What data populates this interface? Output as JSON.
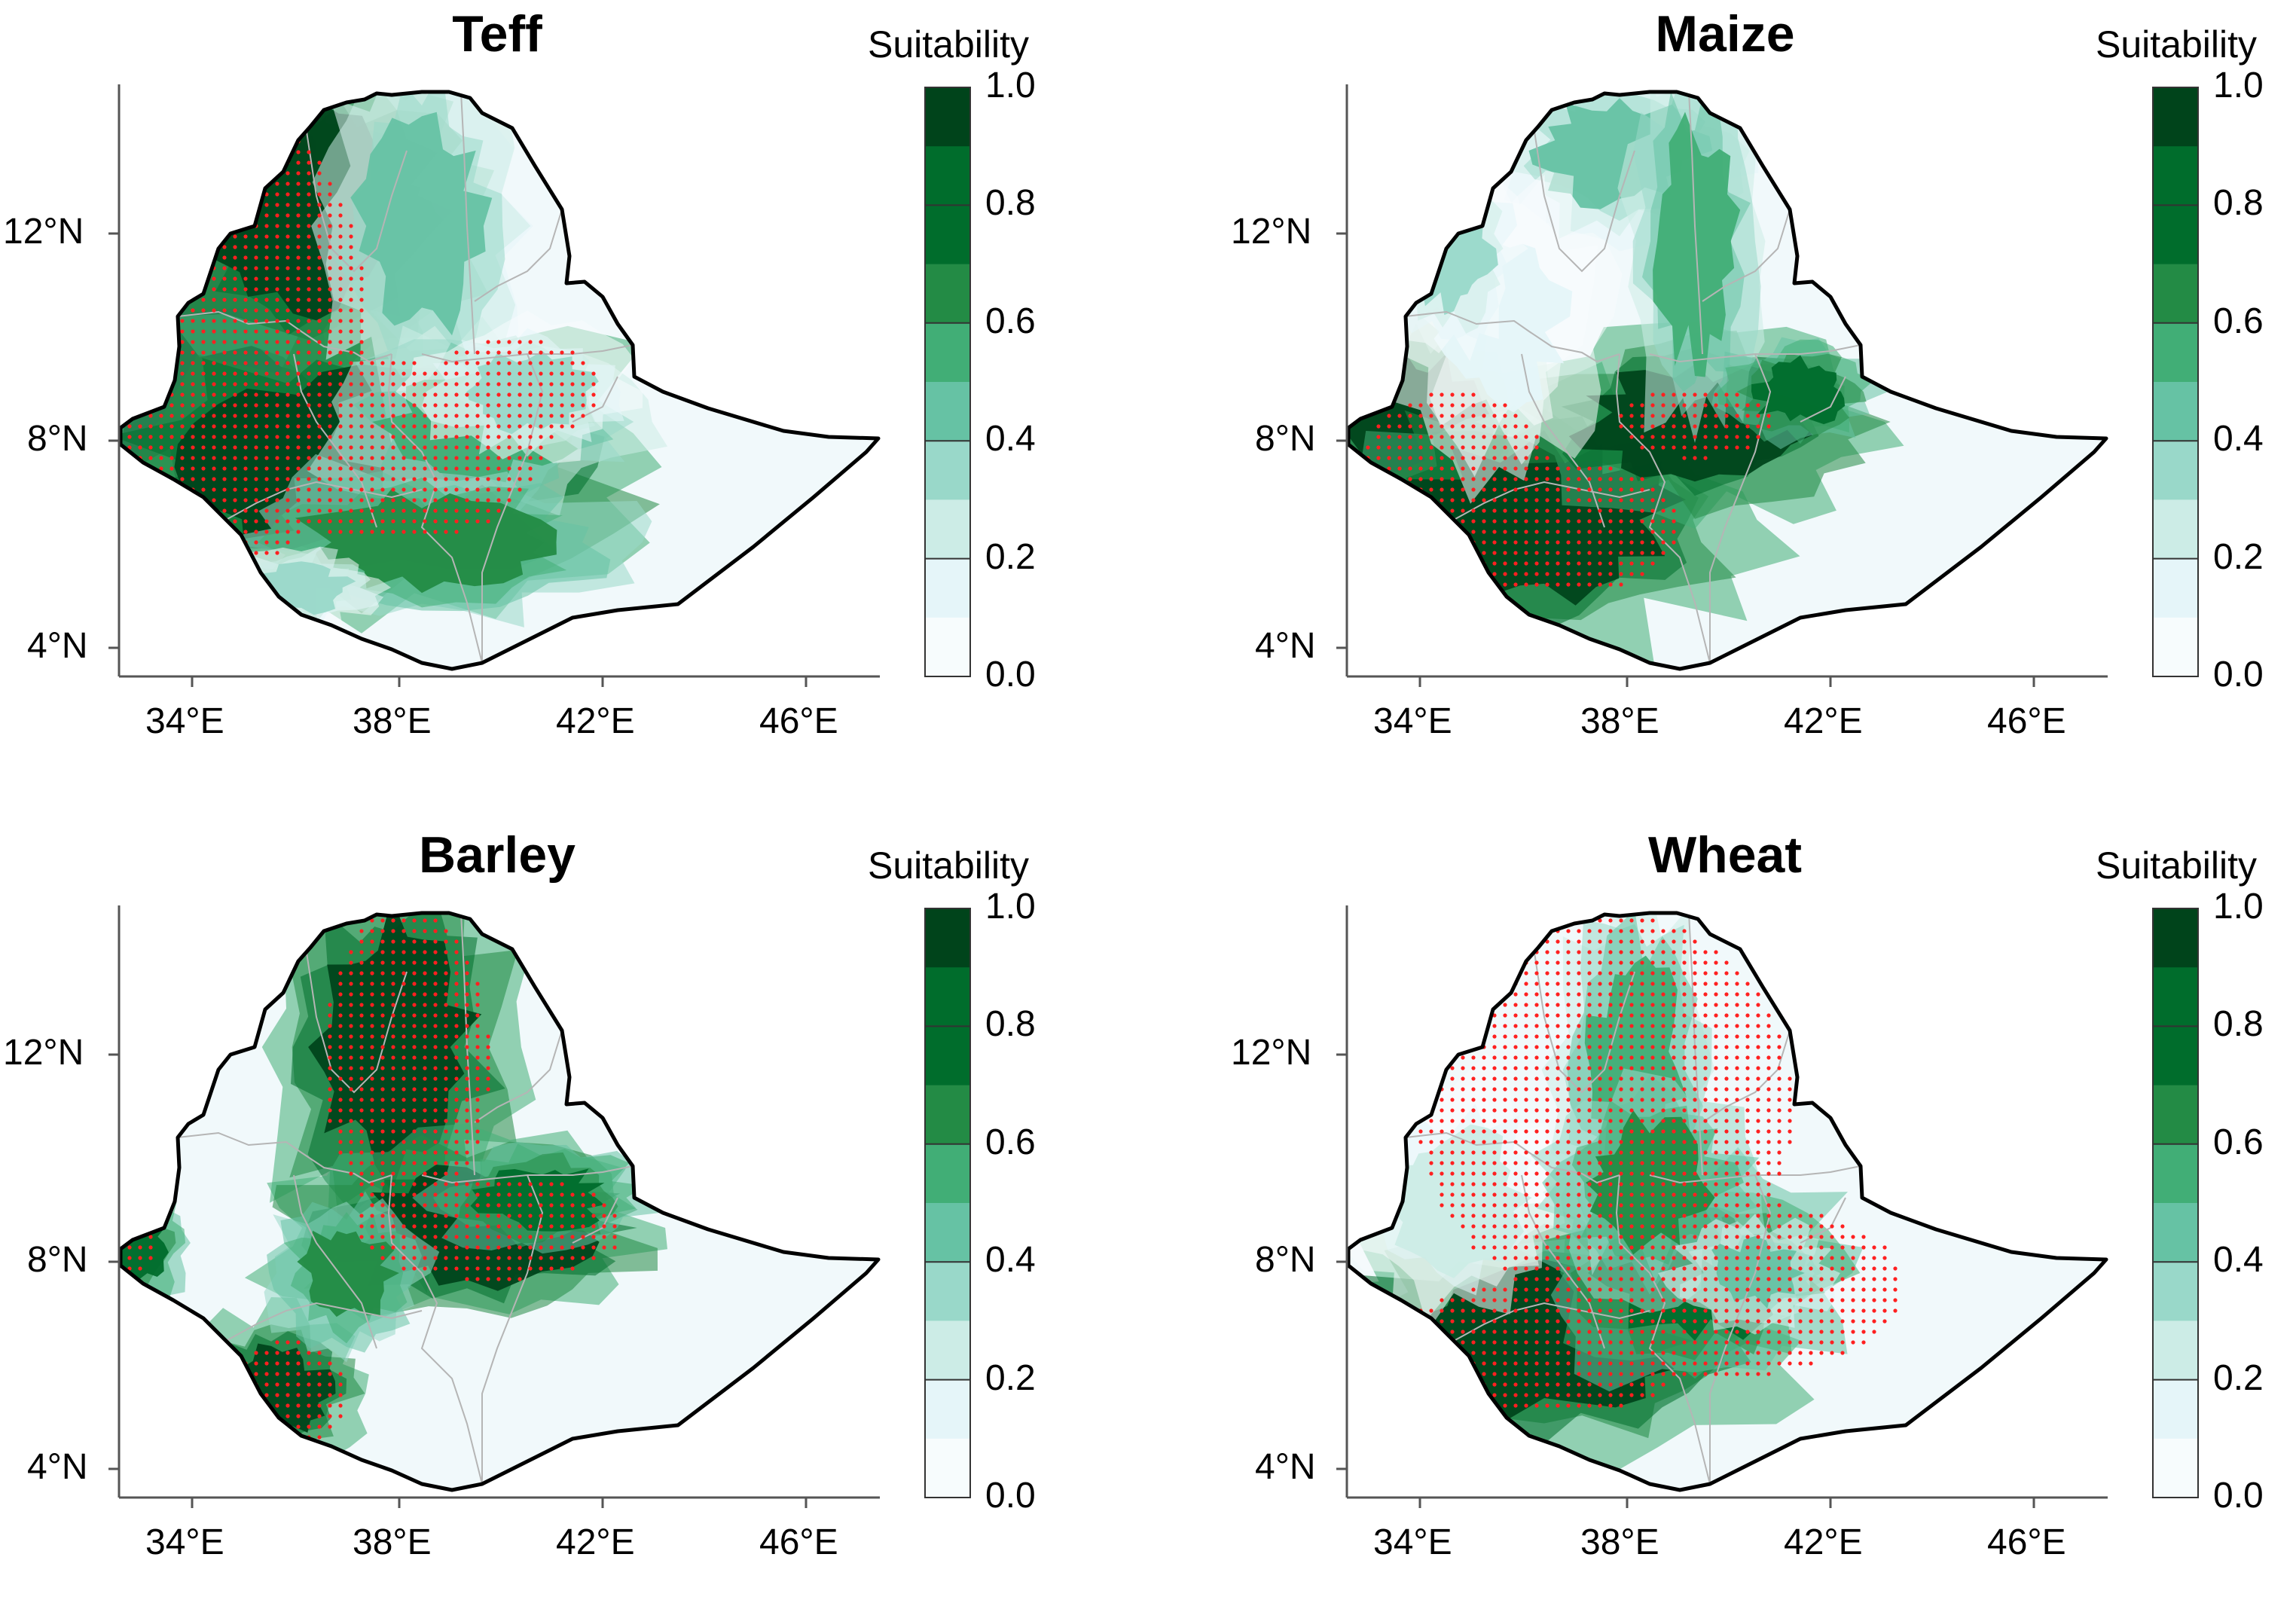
{
  "colorbar": {
    "title": "Suitability",
    "ticks": [
      "1.0",
      "0.8",
      "0.6",
      "0.4",
      "0.2",
      "0.0"
    ],
    "colors": [
      "#00441b",
      "#006d2c",
      "#238b45",
      "#41ae76",
      "#66c2a4",
      "#99d8c9",
      "#ccece6",
      "#e5f5f9",
      "#f7fcfd"
    ]
  },
  "axes": {
    "x_ticks": [
      "34°E",
      "38°E",
      "42°E",
      "46°E"
    ],
    "y_ticks": [
      "12°N",
      "8°N",
      "4°N"
    ]
  },
  "colors": {
    "background": "#f1f9fb",
    "border": "#000000",
    "admin": "#b5b5b5",
    "dots": "#ff2020"
  },
  "panels": [
    {
      "id": "teff",
      "title": "Teff",
      "dots": "dense-west"
    },
    {
      "id": "maize",
      "title": "Maize",
      "dots": "southwest"
    },
    {
      "id": "barley",
      "title": "Barley",
      "dots": "highlands"
    },
    {
      "id": "wheat",
      "title": "Wheat",
      "dots": "highlands-wide"
    }
  ]
}
